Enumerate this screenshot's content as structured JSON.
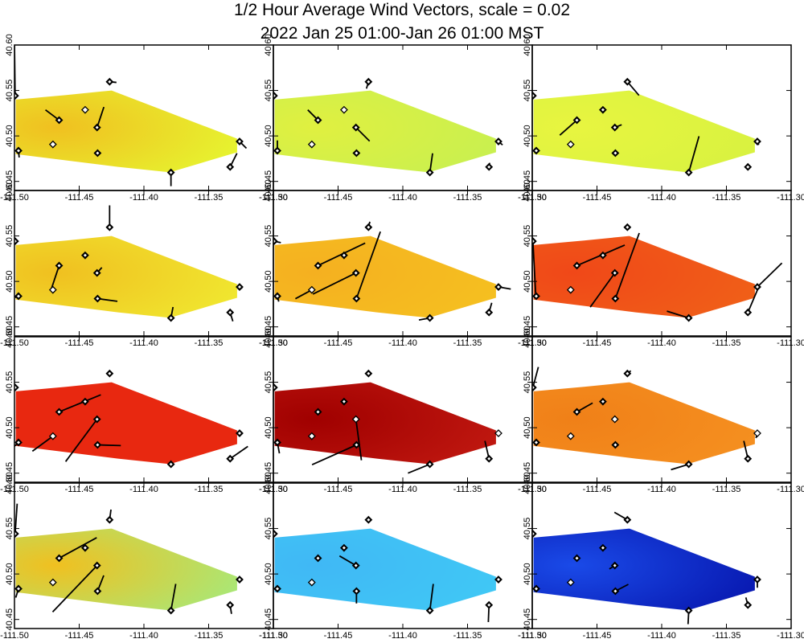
{
  "chart_data": {
    "type": "vector-field-map",
    "title": "1/2 Hour Average Wind Vectors, scale =  0.02",
    "subtitle": "2022 Jan 25 01:00-Jan 26 01:00 MST",
    "xlim": [
      -111.5,
      -111.3
    ],
    "ylim": [
      40.44,
      40.6
    ],
    "x_ticks": [
      -111.5,
      -111.45,
      -111.4,
      -111.35,
      -111.3
    ],
    "x_tick_labels": [
      "-111.50",
      "-111.45",
      "-111.40",
      "-111.35",
      "-111.30"
    ],
    "y_ticks": [
      40.45,
      40.5,
      40.55,
      40.6
    ],
    "y_tick_labels": [
      "40.45",
      "40.50",
      "40.55",
      "40.60"
    ],
    "domain_outline": [
      [
        -111.499,
        40.54
      ],
      [
        -111.46,
        40.545
      ],
      [
        -111.425,
        40.55
      ],
      [
        -111.328,
        40.497
      ],
      [
        -111.328,
        40.482
      ],
      [
        -111.38,
        40.46
      ],
      [
        -111.42,
        40.466
      ],
      [
        -111.499,
        40.48
      ]
    ],
    "stations": [
      {
        "lon": -111.4995,
        "lat": 40.5442
      },
      {
        "lon": -111.4969,
        "lat": 40.4838
      },
      {
        "lon": -111.4655,
        "lat": 40.5174
      },
      {
        "lon": -111.4703,
        "lat": 40.4907
      },
      {
        "lon": -111.4454,
        "lat": 40.5287
      },
      {
        "lon": -111.4362,
        "lat": 40.5093
      },
      {
        "lon": -111.4358,
        "lat": 40.4811
      },
      {
        "lon": -111.4265,
        "lat": 40.5596
      },
      {
        "lon": -111.3791,
        "lat": 40.4598
      },
      {
        "lon": -111.3334,
        "lat": 40.4659
      },
      {
        "lon": -111.3261,
        "lat": 40.4939
      }
    ],
    "panels": [
      {
        "panel": 1,
        "color": "#e6f530",
        "centroid": "#f0c020",
        "markers": "DDDOODDDDDD",
        "vectors": [
          [
            -0.1,
            8
          ],
          [
            0.1,
            -1
          ],
          [
            -2,
            1.5
          ],
          [
            0,
            0
          ],
          [
            0,
            0
          ],
          [
            1,
            3
          ],
          [
            0,
            0
          ],
          [
            1,
            -0.1
          ],
          [
            0,
            -2
          ],
          [
            1,
            2
          ],
          [
            1,
            -1
          ]
        ]
      },
      {
        "panel": 2,
        "color": "#c8f050",
        "centroid": "#e0f040",
        "markers": "DDDOODDDDDD",
        "vectors": [
          [
            0,
            0
          ],
          [
            0,
            1.5
          ],
          [
            -1.5,
            1.5
          ],
          [
            0,
            0
          ],
          [
            0,
            0
          ],
          [
            2,
            -2
          ],
          [
            0,
            0
          ],
          [
            -0.3,
            -1
          ],
          [
            0.4,
            2.8
          ],
          [
            0.1,
            0.6
          ],
          [
            0.6,
            -0.5
          ]
        ]
      },
      {
        "panel": 3,
        "color": "#d8f240",
        "centroid": "#e8f540",
        "markers": "DDDODDDDDDD",
        "vectors": [
          [
            0,
            0
          ],
          [
            0,
            0
          ],
          [
            -2.5,
            -2.2
          ],
          [
            0,
            0
          ],
          [
            0,
            0
          ],
          [
            1,
            0.4
          ],
          [
            0,
            0
          ],
          [
            1.7,
            -2
          ],
          [
            1.5,
            5.3
          ],
          [
            0,
            0
          ],
          [
            0.2,
            -0.5
          ]
        ]
      },
      {
        "panel": 4,
        "color": "#f0e830",
        "centroid": "#f0c020",
        "markers": "DDDODDDDDDD",
        "vectors": [
          [
            0,
            0
          ],
          [
            -0.5,
            -0.2
          ],
          [
            -1.2,
            -3.6
          ],
          [
            0,
            0
          ],
          [
            0,
            0
          ],
          [
            0.7,
            0.8
          ],
          [
            2.9,
            -0.4
          ],
          [
            0,
            3.2
          ],
          [
            0.3,
            1.6
          ],
          [
            0.4,
            -1.3
          ],
          [
            0.4,
            -0.2
          ]
        ]
      },
      {
        "panel": 5,
        "color": "#f5c020",
        "centroid": "#f5b020",
        "markers": "DDDODDDDDDD",
        "vectors": [
          [
            1,
            -0.2
          ],
          [
            0.2,
            -0.8
          ],
          [
            6.9,
            3.3
          ],
          [
            -2.4,
            -1.3
          ],
          [
            0,
            0
          ],
          [
            -6.3,
            -3.1
          ],
          [
            3.5,
            9.8
          ],
          [
            0.2,
            0.8
          ],
          [
            -1.6,
            -0.3
          ],
          [
            0.4,
            1.4
          ],
          [
            1.8,
            -0.3
          ]
        ]
      },
      {
        "panel": 6,
        "color": "#f06018",
        "centroid": "#f04818",
        "markers": "DDDODDDDDDD",
        "vectors": [
          [
            0.4,
            -7.6
          ],
          [
            0,
            0
          ],
          [
            7,
            3
          ],
          [
            0,
            0
          ],
          [
            0,
            0
          ],
          [
            -3.6,
            -5
          ],
          [
            3.5,
            9.6
          ],
          [
            0,
            0
          ],
          [
            -3.2,
            1
          ],
          [
            1.4,
            3.3
          ],
          [
            3.6,
            3.5
          ]
        ]
      },
      {
        "panel": 7,
        "color": "#e82810",
        "centroid": "#e82810",
        "markers": "DDDODDDDDDD",
        "vectors": [
          [
            0,
            0
          ],
          [
            -1.5,
            -1.4
          ],
          [
            6.1,
            2.5
          ],
          [
            -3,
            -2.2
          ],
          [
            0,
            0
          ],
          [
            -4.6,
            -6.2
          ],
          [
            3.4,
            -0.1
          ],
          [
            0,
            0
          ],
          [
            0,
            0
          ],
          [
            2.6,
            1.8
          ],
          [
            0,
            0
          ]
        ]
      },
      {
        "panel": 8,
        "color": "#c01810",
        "centroid": "#a00000",
        "markers": "DDDODODDDDO",
        "vectors": [
          [
            -1.2,
            2.3
          ],
          [
            0.3,
            -1.6
          ],
          [
            0,
            0
          ],
          [
            0,
            0
          ],
          [
            0,
            0
          ],
          [
            0.8,
            -6
          ],
          [
            -6.5,
            -2.9
          ],
          [
            0,
            0
          ],
          [
            -3.2,
            -1.3
          ],
          [
            -0.6,
            2.6
          ],
          [
            0,
            0
          ]
        ]
      },
      {
        "panel": 9,
        "color": "#f59020",
        "centroid": "#f08018",
        "markers": "DDDODODDDDO",
        "vectors": [
          [
            0.8,
            3
          ],
          [
            0,
            0
          ],
          [
            2.3,
            1.3
          ],
          [
            0,
            0
          ],
          [
            0,
            0
          ],
          [
            0,
            0
          ],
          [
            0,
            0
          ],
          [
            0.5,
            0.4
          ],
          [
            -2.6,
            -0.8
          ],
          [
            -0.6,
            2.6
          ],
          [
            -0.2,
            -0.7
          ]
        ]
      },
      {
        "panel": 10,
        "color": "#a8e878",
        "centroid": "#f0c020",
        "markers": "DDDODDDDDDD",
        "vectors": [
          [
            0.3,
            4.4
          ],
          [
            -0.4,
            -1.3
          ],
          [
            5.5,
            3
          ],
          [
            0,
            0
          ],
          [
            0,
            0
          ],
          [
            -6.5,
            -6.8
          ],
          [
            0.9,
            2.3
          ],
          [
            0.2,
            1.5
          ],
          [
            0.7,
            3.9
          ],
          [
            0.2,
            -1.3
          ],
          [
            0,
            0
          ]
        ]
      },
      {
        "panel": 11,
        "color": "#40c8f5",
        "centroid": "#40b8f5",
        "markers": "DDDODDDDDDD",
        "vectors": [
          [
            0,
            0
          ],
          [
            0,
            0
          ],
          [
            -0.5,
            0
          ],
          [
            0,
            0
          ],
          [
            0,
            0
          ],
          [
            -2.4,
            1.4
          ],
          [
            0,
            -1.8
          ],
          [
            0,
            0
          ],
          [
            0.5,
            3.9
          ],
          [
            -0.1,
            -2.5
          ],
          [
            0,
            0
          ]
        ]
      },
      {
        "panel": 12,
        "color": "#0818b0",
        "centroid": "#1a4ae8",
        "markers": "DDDODDDDDDD",
        "vectors": [
          [
            0,
            0
          ],
          [
            0,
            0
          ],
          [
            0,
            0
          ],
          [
            0,
            0
          ],
          [
            0,
            0
          ],
          [
            -0.8,
            -0.5
          ],
          [
            1.9,
            1
          ],
          [
            -1.9,
            1.1
          ],
          [
            -0.1,
            -2
          ],
          [
            -0.3,
            1.1
          ],
          [
            0,
            -1.2
          ]
        ]
      }
    ]
  }
}
